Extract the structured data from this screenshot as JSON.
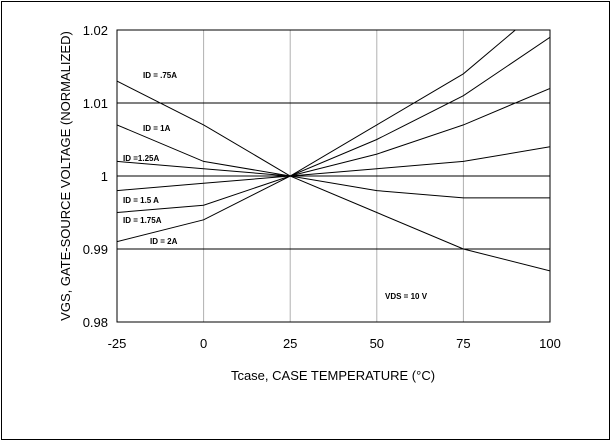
{
  "chart_data": {
    "type": "line",
    "xlabel": "Tcase, CASE TEMPERATURE (°C)",
    "ylabel": "VGS, GATE-SOURCE VOLTAGE (NORMALIZED)",
    "xlim": [
      -25,
      100
    ],
    "ylim": [
      0.98,
      1.02
    ],
    "x_ticks": [
      -25,
      0,
      25,
      50,
      75,
      100
    ],
    "x_tick_labels": [
      "-25",
      "0",
      "25",
      "50",
      "75",
      "100"
    ],
    "y_ticks": [
      0.98,
      0.99,
      1.0,
      1.01,
      1.02
    ],
    "y_tick_labels": [
      "0.98",
      "0.99",
      "1",
      "1.01",
      "1.02"
    ],
    "grid": true,
    "x": [
      -25,
      0,
      25,
      50,
      75,
      100
    ],
    "series": [
      {
        "name": "ID = .75A",
        "values": [
          1.013,
          1.007,
          1.0,
          1.007,
          1.014,
          1.024
        ]
      },
      {
        "name": "ID = 1A",
        "values": [
          1.007,
          1.002,
          1.0,
          1.005,
          1.011,
          1.019
        ]
      },
      {
        "name": "ID =1.25A",
        "values": [
          1.002,
          1.001,
          1.0,
          1.003,
          1.007,
          1.012
        ]
      },
      {
        "name": "ID = 1.5 A",
        "values": [
          0.998,
          0.999,
          1.0,
          1.001,
          1.002,
          1.004
        ]
      },
      {
        "name": "ID = 1.75A",
        "values": [
          0.995,
          0.996,
          1.0,
          0.998,
          0.997,
          0.997
        ]
      },
      {
        "name": "ID = 2A",
        "values": [
          0.991,
          0.994,
          1.0,
          0.995,
          0.99,
          0.987
        ]
      }
    ],
    "annotation": "VDS = 10 V",
    "line_color": "#000000",
    "grid_color": "#b0b0b0"
  }
}
